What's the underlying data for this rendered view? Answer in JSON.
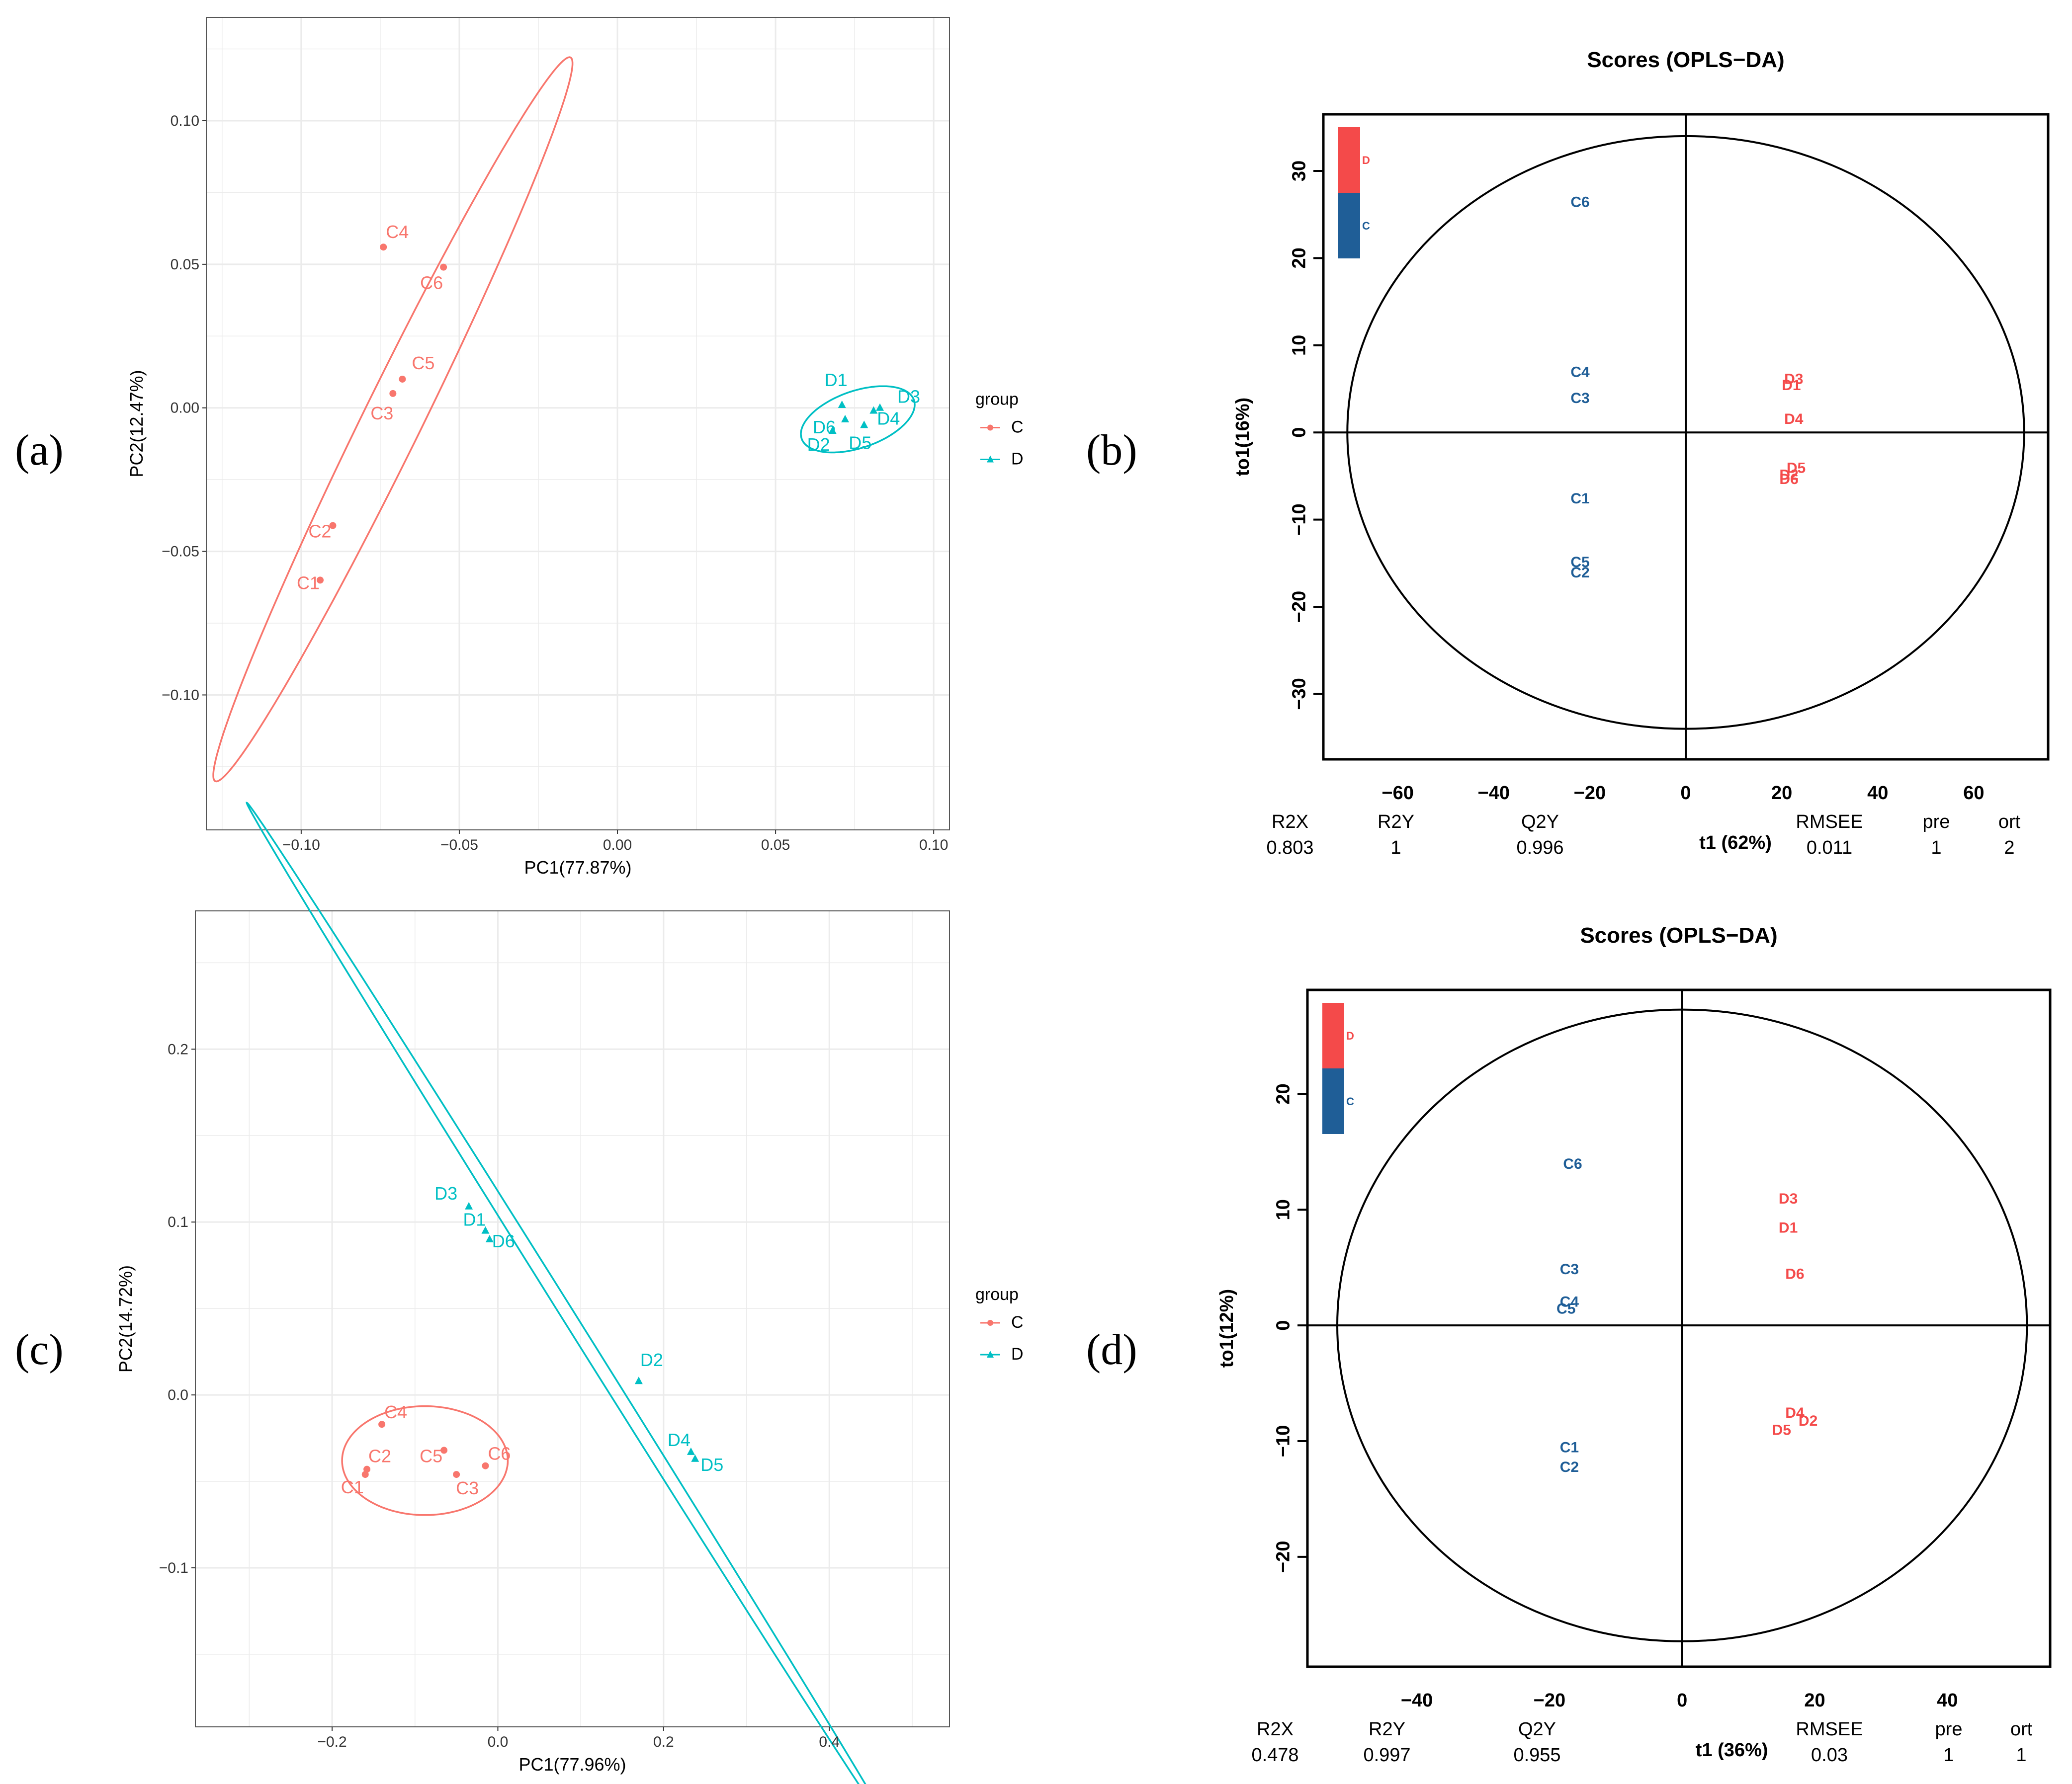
{
  "colors": {
    "pca_C": "#F8766D",
    "pca_D": "#00BFC4",
    "opls_C": "#1F5E97",
    "opls_D": "#F44A4A",
    "grid": "#EBEBEB"
  },
  "chart_data": [
    {
      "id": "a",
      "panel_label": "(a)",
      "type": "scatter",
      "xlabel": "PC1(77.87%)",
      "ylabel": "PC2(12.47%)",
      "xlim": [
        -0.13,
        0.105
      ],
      "ylim": [
        -0.147,
        0.136
      ],
      "xticks": [
        -0.1,
        -0.05,
        0.0,
        0.05,
        0.1
      ],
      "xtick_labels": [
        "−0.10",
        "−0.05",
        "0.00",
        "0.05",
        "0.10"
      ],
      "yticks": [
        -0.1,
        -0.05,
        0.0,
        0.05,
        0.1
      ],
      "ytick_labels": [
        "−0.10",
        "−0.05",
        "0.00",
        "0.05",
        "0.10"
      ],
      "legend": {
        "title": "group",
        "entries": [
          "C",
          "D"
        ]
      },
      "series": [
        {
          "name": "C",
          "points": [
            {
              "label": "C1",
              "x": -0.094,
              "y": -0.06
            },
            {
              "label": "C2",
              "x": -0.09,
              "y": -0.041
            },
            {
              "label": "C3",
              "x": -0.071,
              "y": 0.005
            },
            {
              "label": "C4",
              "x": -0.074,
              "y": 0.056
            },
            {
              "label": "C5",
              "x": -0.068,
              "y": 0.01
            },
            {
              "label": "C6",
              "x": -0.055,
              "y": 0.049
            }
          ]
        },
        {
          "name": "D",
          "points": [
            {
              "label": "D1",
              "x": 0.071,
              "y": 0.001
            },
            {
              "label": "D2",
              "x": 0.068,
              "y": -0.008
            },
            {
              "label": "D3",
              "x": 0.083,
              "y": 0.0
            },
            {
              "label": "D4",
              "x": 0.081,
              "y": -0.001
            },
            {
              "label": "D5",
              "x": 0.078,
              "y": -0.006
            },
            {
              "label": "D6",
              "x": 0.072,
              "y": -0.004
            }
          ]
        }
      ],
      "ellipses": [
        {
          "group": "C",
          "cx": -0.071,
          "cy": -0.004,
          "a": 0.138,
          "b": 0.0095,
          "angle_deg": 66
        },
        {
          "group": "D",
          "cx": 0.076,
          "cy": -0.004,
          "a": 0.019,
          "b": 0.0098,
          "angle_deg": 22
        }
      ]
    },
    {
      "id": "b",
      "panel_label": "(b)",
      "type": "scatter",
      "title": "Scores (OPLS−DA)",
      "xlabel": "t1 (62%)",
      "ylabel": "to1(16%)",
      "xlim": [
        -75.5,
        75.5
      ],
      "ylim": [
        -37.5,
        36.5
      ],
      "xticks": [
        -60,
        -40,
        -20,
        0,
        20,
        40,
        60
      ],
      "xtick_labels": [
        "−60",
        "−40",
        "−20",
        "0",
        "20",
        "40",
        "60"
      ],
      "yticks": [
        -30,
        -20,
        -10,
        0,
        10,
        20,
        30
      ],
      "ytick_labels": [
        "−30",
        "−20",
        "−10",
        "0",
        "10",
        "20",
        "30"
      ],
      "legend": {
        "entries": [
          "D",
          "C"
        ]
      },
      "series": [
        {
          "name": "C",
          "points": [
            {
              "label": "C6",
              "x": -22,
              "y": 26.5
            },
            {
              "label": "C4",
              "x": -22,
              "y": 7.0
            },
            {
              "label": "C3",
              "x": -22,
              "y": 4.0
            },
            {
              "label": "C1",
              "x": -22,
              "y": -7.5
            },
            {
              "label": "C5",
              "x": -22,
              "y": -14.8
            },
            {
              "label": "C2",
              "x": -22,
              "y": -16.0
            }
          ]
        },
        {
          "name": "D",
          "points": [
            {
              "label": "D3",
              "x": 22.5,
              "y": 6.2
            },
            {
              "label": "D1",
              "x": 22,
              "y": 5.5
            },
            {
              "label": "D4",
              "x": 22.5,
              "y": 1.6
            },
            {
              "label": "D5",
              "x": 23,
              "y": -4.0
            },
            {
              "label": "D2",
              "x": 21.5,
              "y": -4.8
            },
            {
              "label": "D6",
              "x": 21.5,
              "y": -5.3
            }
          ]
        }
      ],
      "ellipse": {
        "a": 70.5,
        "b": 34.0
      },
      "stats": {
        "headers": [
          "R2X",
          "R2Y",
          "Q2Y",
          "RMSEE",
          "pre",
          "ort"
        ],
        "values": [
          "0.803",
          "1",
          "0.996",
          "0.011",
          "1",
          "2"
        ]
      }
    },
    {
      "id": "c",
      "panel_label": "(c)",
      "type": "scatter",
      "xlabel": "PC1(77.96%)",
      "ylabel": "PC2(14.72%)",
      "xlim": [
        -0.365,
        0.545
      ],
      "ylim": [
        -0.192,
        0.28
      ],
      "xticks": [
        -0.2,
        0.0,
        0.2,
        0.4
      ],
      "xtick_labels": [
        "−0.2",
        "0.0",
        "0.2",
        "0.4"
      ],
      "yticks": [
        -0.1,
        0.0,
        0.1,
        0.2
      ],
      "ytick_labels": [
        "−0.1",
        "0.0",
        "0.1",
        "0.2"
      ],
      "legend": {
        "title": "group",
        "entries": [
          "C",
          "D"
        ]
      },
      "series": [
        {
          "name": "C",
          "points": [
            {
              "label": "C1",
              "x": -0.16,
              "y": -0.046
            },
            {
              "label": "C2",
              "x": -0.158,
              "y": -0.043
            },
            {
              "label": "C3",
              "x": -0.05,
              "y": -0.046
            },
            {
              "label": "C4",
              "x": -0.14,
              "y": -0.017
            },
            {
              "label": "C5",
              "x": -0.065,
              "y": -0.032
            },
            {
              "label": "C6",
              "x": -0.015,
              "y": -0.041
            }
          ]
        },
        {
          "name": "D",
          "points": [
            {
              "label": "D1",
              "x": -0.015,
              "y": 0.095
            },
            {
              "label": "D2",
              "x": 0.17,
              "y": 0.008
            },
            {
              "label": "D3",
              "x": -0.035,
              "y": 0.109
            },
            {
              "label": "D4",
              "x": 0.233,
              "y": -0.033
            },
            {
              "label": "D5",
              "x": 0.238,
              "y": -0.037
            },
            {
              "label": "D6",
              "x": -0.01,
              "y": 0.09
            }
          ]
        }
      ],
      "ellipses": [
        {
          "group": "C",
          "cx": -0.088,
          "cy": -0.038,
          "a": 0.1,
          "b": 0.0315,
          "angle_deg": 0
        },
        {
          "group": "D",
          "cx": 0.0875,
          "cy": 0.044,
          "a": 0.4915,
          "b": 0.0057,
          "angle_deg": -37.4
        }
      ]
    },
    {
      "id": "d",
      "panel_label": "(d)",
      "type": "scatter",
      "title": "Scores (OPLS−DA)",
      "xlabel": "t1 (36%)",
      "ylabel": "to1(12%)",
      "xlim": [
        -56.5,
        55.5
      ],
      "ylim": [
        -29.5,
        29.0
      ],
      "xticks": [
        -40,
        -20,
        0,
        20,
        40
      ],
      "xtick_labels": [
        "−40",
        "−20",
        "0",
        "20",
        "40"
      ],
      "yticks": [
        -20,
        -10,
        0,
        10,
        20
      ],
      "ytick_labels": [
        "−20",
        "−10",
        "0",
        "10",
        "20"
      ],
      "legend": {
        "entries": [
          "D",
          "C"
        ]
      },
      "series": [
        {
          "name": "C",
          "points": [
            {
              "label": "C6",
              "x": -16.5,
              "y": 14.0
            },
            {
              "label": "C3",
              "x": -17,
              "y": 4.9
            },
            {
              "label": "C4",
              "x": -17,
              "y": 2.1
            },
            {
              "label": "C5",
              "x": -17.5,
              "y": 1.5
            },
            {
              "label": "C1",
              "x": -17,
              "y": -10.5
            },
            {
              "label": "C2",
              "x": -17,
              "y": -12.2
            }
          ]
        },
        {
          "name": "D",
          "points": [
            {
              "label": "D3",
              "x": 16,
              "y": 11.0
            },
            {
              "label": "D1",
              "x": 16,
              "y": 8.5
            },
            {
              "label": "D6",
              "x": 17,
              "y": 4.5
            },
            {
              "label": "D4",
              "x": 17,
              "y": -7.5
            },
            {
              "label": "D2",
              "x": 19,
              "y": -8.2
            },
            {
              "label": "D5",
              "x": 15,
              "y": -9.0
            }
          ]
        }
      ],
      "ellipse": {
        "a": 52.0,
        "b": 27.3
      },
      "stats": {
        "headers": [
          "R2X",
          "R2Y",
          "Q2Y",
          "RMSEE",
          "pre",
          "ort"
        ],
        "values": [
          "0.478",
          "0.997",
          "0.955",
          "0.03",
          "1",
          "1"
        ]
      }
    }
  ]
}
